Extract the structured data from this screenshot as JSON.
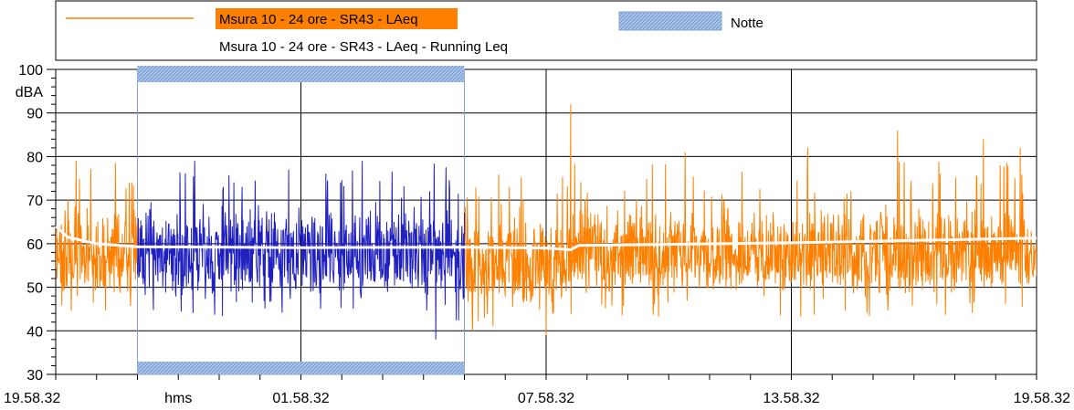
{
  "chart_data": {
    "type": "line",
    "ylabel": "dBA",
    "xlabel": "hms",
    "ylim": [
      30,
      100
    ],
    "y_ticks": [
      "30",
      "40",
      "50",
      "60",
      "70",
      "80",
      "90",
      "100"
    ],
    "x_ticks": [
      {
        "t": 0,
        "label": "19.58.32"
      },
      {
        "t": 6,
        "label": "01.58.32"
      },
      {
        "t": 12,
        "label": "07.58.32"
      },
      {
        "t": 18,
        "label": "13.58.32"
      },
      {
        "t": 24,
        "label": "19.58.32"
      }
    ],
    "grid": true,
    "legend_position": "top",
    "legend": {
      "series_1": "Msura 10 - 24 ore - SR43 - LAeq",
      "series_2": "Msura 10 - 24 ore - SR43 - LAeq - Running Leq",
      "band": "Notte"
    },
    "night_band": {
      "start": 2,
      "end": 10
    },
    "series": [
      {
        "name": "Msura 10 - 24 ore - SR43 - LAeq",
        "color": "#ff8000",
        "night_color": "#2020c0",
        "base_level": 57,
        "peaks": [
          [
            0.5,
            79
          ],
          [
            1.8,
            74
          ],
          [
            3.4,
            79
          ],
          [
            5.7,
            77
          ],
          [
            7.5,
            79
          ],
          [
            11.1,
            73
          ],
          [
            12.6,
            92
          ],
          [
            15.4,
            81
          ],
          [
            18.4,
            82
          ],
          [
            20.6,
            86
          ],
          [
            22.7,
            84
          ],
          [
            23.6,
            82
          ]
        ],
        "troughs": [
          [
            9.3,
            38
          ],
          [
            10.2,
            40
          ],
          [
            12.0,
            39
          ],
          [
            10.7,
            41
          ]
        ]
      },
      {
        "name": "Msura 10 - 24 ore - SR43 - LAeq - Running Leq",
        "color": "#ffffff",
        "x": [
          0,
          0.3,
          1,
          2,
          6,
          10,
          12,
          12.6,
          12.8,
          18,
          24
        ],
        "y": [
          64,
          61.5,
          60,
          59.3,
          59.1,
          59.2,
          59.0,
          58.6,
          59.6,
          60.2,
          61.3
        ]
      }
    ],
    "colors": {
      "series_1": "#ff8000",
      "series_2": "#ffffff",
      "night": "#2020c0",
      "band": "#a9c4e8"
    }
  }
}
